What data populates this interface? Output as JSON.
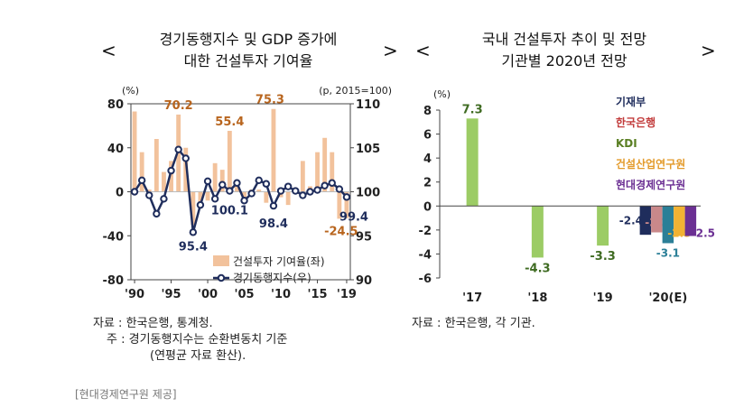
{
  "left_panel": {
    "title_line1": "경기동행지수 및 GDP 증가에",
    "title_line2": "대한 건설투자 기여율",
    "nav_prev": "<",
    "nav_next": ">",
    "source": "자료 : 한국은행, 통계청.",
    "note_line1": "주 : 경기동행지수는 순환변동치 기준",
    "note_line2": "(연평균 자료 환산)."
  },
  "right_panel": {
    "title_line1": "국내 건설투자 추이 및 전망",
    "title_line2": "기관별 2020년 전망",
    "nav_prev": "<",
    "nav_next": ">",
    "source": "자료 : 한국은행, 각 기관."
  },
  "credit": "[현대경제연구원 제공]",
  "chart_data": [
    {
      "type": "bar+line",
      "left_unit": "(%)",
      "right_unit": "(p, 2015=100)",
      "left_ylim": [
        -80,
        80
      ],
      "left_ticks": [
        80,
        40,
        0,
        -40,
        -80
      ],
      "left_tick_labels": [
        "80",
        "40",
        "0",
        "-40",
        "-80"
      ],
      "right_ylim": [
        90,
        110
      ],
      "right_ticks": [
        110,
        105,
        100,
        95,
        90
      ],
      "right_tick_labels": [
        "110",
        "105",
        "100",
        "95",
        "90"
      ],
      "x": [
        1990,
        1991,
        1992,
        1993,
        1994,
        1995,
        1996,
        1997,
        1998,
        1999,
        2000,
        2001,
        2002,
        2003,
        2004,
        2005,
        2006,
        2007,
        2008,
        2009,
        2010,
        2011,
        2012,
        2013,
        2014,
        2015,
        2016,
        2017,
        2018,
        2019
      ],
      "x_tick_labels": [
        "'90",
        "'95",
        "'00",
        "'05",
        "'10",
        "'15",
        "'19"
      ],
      "x_tick_years": [
        1990,
        1995,
        2000,
        2005,
        2010,
        2015,
        2019
      ],
      "series": [
        {
          "name": "건설투자 기여율(좌)",
          "kind": "bar",
          "axis": "left",
          "color": "#f2c29c",
          "values": [
            73,
            36,
            2,
            48,
            18,
            28,
            70.2,
            40,
            -30,
            -12,
            -8,
            26,
            20,
            55.4,
            10,
            -5,
            2,
            2,
            -10,
            75.3,
            -5,
            -12,
            2,
            28,
            5,
            36,
            49,
            36,
            -24.5,
            -24
          ]
        },
        {
          "name": "경기동행지수(우)",
          "kind": "line",
          "axis": "right",
          "color": "#1f2d5c",
          "values": [
            100.0,
            101.3,
            99.6,
            97.5,
            99.2,
            102.4,
            104.8,
            103.8,
            95.4,
            98.5,
            101.2,
            99.2,
            100.8,
            100.1,
            101.0,
            99.0,
            99.8,
            101.3,
            100.9,
            98.4,
            100.1,
            100.6,
            100.1,
            99.6,
            100.0,
            100.2,
            100.7,
            101.0,
            100.3,
            99.4
          ]
        }
      ],
      "annotations": [
        {
          "text": "70.2",
          "x": 1996,
          "value": 70.2,
          "axis": "left",
          "color": "#b8651e"
        },
        {
          "text": "55.4",
          "x": 2003,
          "value": 55.4,
          "axis": "left",
          "color": "#b8651e"
        },
        {
          "text": "75.3",
          "x": 2009,
          "value": 75.3,
          "axis": "left",
          "color": "#b8651e"
        },
        {
          "text": "-24.5",
          "x": 2018,
          "value": -24.5,
          "axis": "left",
          "color": "#b8651e"
        },
        {
          "text": "95.4",
          "x": 1998,
          "value": 95.4,
          "axis": "right",
          "color": "#1f2d5c"
        },
        {
          "text": "100.1",
          "x": 2003,
          "value": 100.1,
          "axis": "right",
          "color": "#1f2d5c"
        },
        {
          "text": "98.4",
          "x": 2009,
          "value": 98.4,
          "axis": "right",
          "color": "#1f2d5c"
        },
        {
          "text": "99.4",
          "x": 2019,
          "value": 99.4,
          "axis": "right",
          "color": "#1f2d5c"
        }
      ],
      "legend": [
        {
          "label": "건설투자 기여율(좌)",
          "kind": "bar",
          "color": "#f2c29c"
        },
        {
          "label": "경기동행지수(우)",
          "kind": "line",
          "color": "#1f2d5c"
        }
      ],
      "legend_position": "bottom-right"
    },
    {
      "type": "bar",
      "unit": "(%)",
      "ylim": [
        -6,
        8
      ],
      "ticks": [
        8,
        6,
        4,
        2,
        0,
        -2,
        -4,
        -6
      ],
      "tick_labels": [
        "8",
        "6",
        "4",
        "2",
        "0",
        "-2",
        "-4",
        "-6"
      ],
      "categories": [
        "'17",
        "'18",
        "'19",
        "'20(E)"
      ],
      "values": [
        7.3,
        -4.3,
        -3.3,
        null
      ],
      "value_labels": [
        "7.3",
        "-4.3",
        "-3.3",
        ""
      ],
      "bar_color": "#9ccc65",
      "label_color": "#3f6b22",
      "forecast_2020": [
        {
          "name": "기재부",
          "value": -2.4,
          "label": "-2.4",
          "color": "#1f2d5c"
        },
        {
          "name": "한국은행",
          "value": -2.2,
          "label": "-2.2",
          "color": "#c9888a"
        },
        {
          "name": "KDI",
          "value": -3.1,
          "label": "-3.1",
          "color": "#2b7f97"
        },
        {
          "name": "건설산업연구원",
          "value": -2.5,
          "label": "-2.5",
          "color": "#f2b233"
        },
        {
          "name": "현대경제연구원",
          "value": -2.5,
          "label": "-2.5",
          "color": "#6b2f93"
        }
      ],
      "legend": [
        {
          "label": "기재부",
          "color": "#1f2d5c"
        },
        {
          "label": "한국은행",
          "color": "#c23b3b"
        },
        {
          "label": "KDI",
          "color": "#5a7f23"
        },
        {
          "label": "건설산업연구원",
          "color": "#e39a2a"
        },
        {
          "label": "현대경제연구원",
          "color": "#6b2f93"
        }
      ],
      "legend_position": "top-right"
    }
  ]
}
